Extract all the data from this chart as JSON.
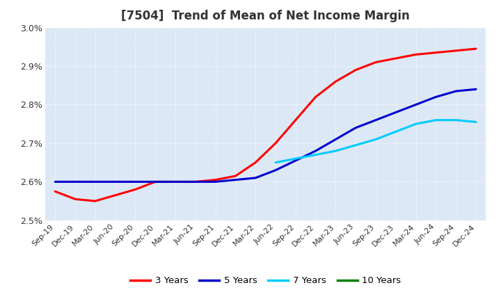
{
  "title": "[7504]  Trend of Mean of Net Income Margin",
  "ylim": [
    0.025,
    0.03
  ],
  "yticks": [
    0.025,
    0.026,
    0.027,
    0.028,
    0.029,
    0.03
  ],
  "ytick_labels": [
    "2.5%",
    "2.6%",
    "2.7%",
    "2.8%",
    "2.9%",
    "3.0%"
  ],
  "background_color": "#ffffff",
  "plot_bg_color": "#dce8f5",
  "grid_color": "#ffffff",
  "x_labels": [
    "Sep-19",
    "Dec-19",
    "Mar-20",
    "Jun-20",
    "Sep-20",
    "Dec-20",
    "Mar-21",
    "Jun-21",
    "Sep-21",
    "Dec-21",
    "Mar-22",
    "Jun-22",
    "Sep-22",
    "Dec-22",
    "Mar-23",
    "Jun-23",
    "Sep-23",
    "Dec-23",
    "Mar-24",
    "Jun-24",
    "Sep-24",
    "Dec-24"
  ],
  "series": {
    "3 Years": {
      "color": "#ff0000",
      "values": [
        0.02575,
        0.02555,
        0.0255,
        0.02565,
        0.0258,
        0.026,
        0.026,
        0.026,
        0.02605,
        0.02615,
        0.0265,
        0.027,
        0.0276,
        0.0282,
        0.0286,
        0.0289,
        0.0291,
        0.0292,
        0.0293,
        0.02935,
        0.0294,
        0.02945
      ]
    },
    "5 Years": {
      "color": "#0000cc",
      "values": [
        0.026,
        0.026,
        0.026,
        0.026,
        0.026,
        0.026,
        0.026,
        0.026,
        0.026,
        0.02605,
        0.0261,
        0.0263,
        0.02655,
        0.0268,
        0.0271,
        0.0274,
        0.0276,
        0.0278,
        0.028,
        0.0282,
        0.02835,
        0.0284
      ]
    },
    "7 Years": {
      "color": "#00ccff",
      "values": [
        null,
        null,
        null,
        null,
        null,
        null,
        null,
        null,
        null,
        null,
        null,
        0.0265,
        0.0266,
        0.0267,
        0.0268,
        0.02695,
        0.0271,
        0.0273,
        0.0275,
        0.0276,
        0.0276,
        0.02755
      ]
    },
    "10 Years": {
      "color": "#008000",
      "values": [
        null,
        null,
        null,
        null,
        null,
        null,
        null,
        null,
        null,
        null,
        null,
        null,
        null,
        null,
        null,
        null,
        null,
        null,
        null,
        null,
        null,
        null
      ]
    }
  },
  "legend_labels": [
    "3 Years",
    "5 Years",
    "7 Years",
    "10 Years"
  ],
  "legend_colors": [
    "#ff0000",
    "#0000cc",
    "#00ccff",
    "#008000"
  ]
}
